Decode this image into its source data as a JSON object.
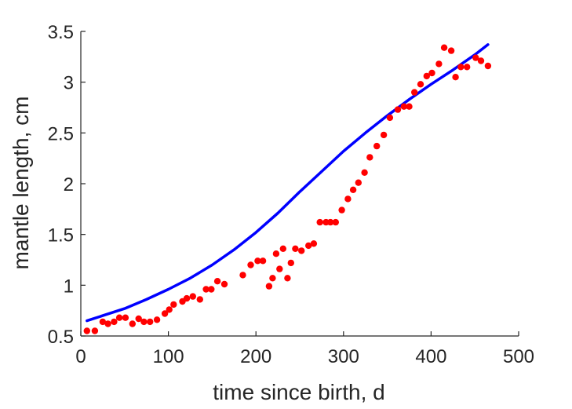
{
  "chart_data": {
    "type": "scatter",
    "title": "",
    "xlabel": "time since birth, d",
    "ylabel": "mantle length, cm",
    "xlim": [
      0,
      500
    ],
    "ylim": [
      0.5,
      3.5
    ],
    "xticks": [
      "0",
      "100",
      "200",
      "300",
      "400",
      "500"
    ],
    "yticks": [
      "0.5",
      "1",
      "1.5",
      "2",
      "2.5",
      "3",
      "3.5"
    ],
    "grid": false,
    "legend": "none",
    "colors": {
      "data": "#ff0000",
      "fit": "#0000ff",
      "axis": "#262626"
    },
    "series": [
      {
        "kind": "scatter",
        "x": [
          7,
          16,
          25,
          31,
          38,
          44,
          51,
          59,
          66,
          72,
          79,
          87,
          96,
          101,
          106,
          116,
          121,
          128,
          136,
          143,
          149,
          156,
          164,
          185,
          194,
          202,
          208,
          215,
          219,
          223,
          227,
          231,
          236,
          240,
          245,
          252,
          260,
          266,
          273,
          280,
          285,
          291,
          298,
          305,
          311,
          317,
          324,
          330,
          338,
          346,
          353,
          362,
          369,
          375,
          381,
          388,
          395,
          401,
          409,
          415,
          423,
          428,
          434,
          441,
          451,
          457,
          465
        ],
        "y": [
          0.55,
          0.55,
          0.64,
          0.62,
          0.64,
          0.68,
          0.68,
          0.62,
          0.67,
          0.64,
          0.64,
          0.66,
          0.72,
          0.76,
          0.81,
          0.84,
          0.87,
          0.89,
          0.86,
          0.96,
          0.96,
          1.04,
          1.01,
          1.1,
          1.2,
          1.24,
          1.24,
          0.99,
          1.07,
          1.31,
          1.16,
          1.36,
          1.07,
          1.22,
          1.36,
          1.34,
          1.39,
          1.41,
          1.62,
          1.62,
          1.62,
          1.62,
          1.74,
          1.85,
          1.94,
          2.01,
          2.11,
          2.26,
          2.37,
          2.48,
          2.65,
          2.73,
          2.76,
          2.76,
          2.9,
          2.98,
          3.06,
          3.09,
          3.18,
          3.34,
          3.31,
          3.05,
          3.15,
          3.15,
          3.24,
          3.21,
          3.16
        ]
      },
      {
        "kind": "line",
        "x": [
          7,
          25,
          50,
          75,
          100,
          125,
          150,
          175,
          200,
          225,
          250,
          275,
          300,
          325,
          350,
          375,
          400,
          425,
          450,
          465
        ],
        "y": [
          0.65,
          0.7,
          0.77,
          0.86,
          0.96,
          1.07,
          1.2,
          1.35,
          1.52,
          1.71,
          1.92,
          2.12,
          2.32,
          2.5,
          2.67,
          2.83,
          2.98,
          3.12,
          3.27,
          3.37
        ]
      }
    ]
  }
}
